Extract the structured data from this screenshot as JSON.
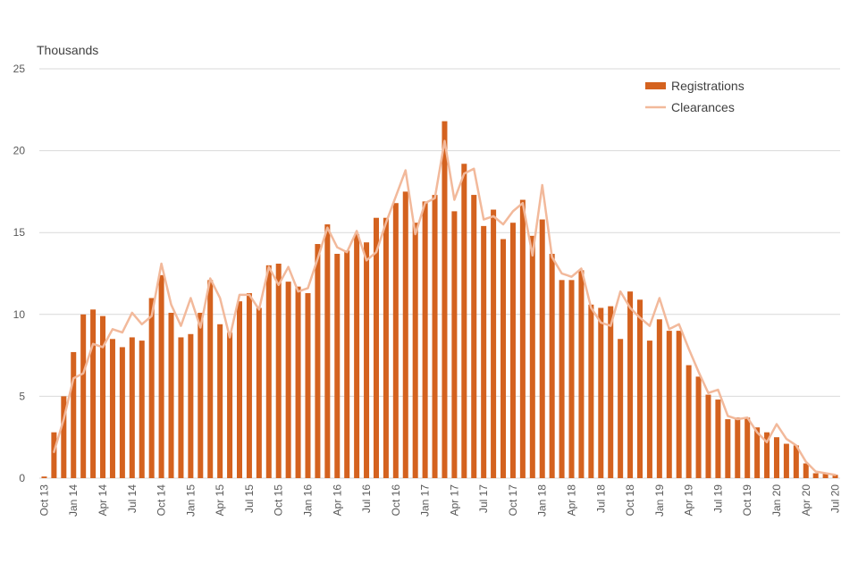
{
  "chart_data": {
    "type": "bar",
    "title": "",
    "unit_label": "Thousands",
    "xlabel": "",
    "ylabel": "",
    "ylim": [
      0,
      25
    ],
    "yticks": [
      0,
      5,
      10,
      15,
      20,
      25
    ],
    "grid": true,
    "legend_position": "top-right",
    "colors": {
      "bars": "#D4621F",
      "line": "#F2B99B",
      "grid": "#D9D9D9",
      "axis_text": "#595959"
    },
    "categories": [
      "Oct 13",
      "Nov 13",
      "Dec 13",
      "Jan 14",
      "Feb 14",
      "Mar 14",
      "Apr 14",
      "May 14",
      "Jun 14",
      "Jul 14",
      "Aug 14",
      "Sep 14",
      "Oct 14",
      "Nov 14",
      "Dec 14",
      "Jan 15",
      "Feb 15",
      "Mar 15",
      "Apr 15",
      "May 15",
      "Jun 15",
      "Jul 15",
      "Aug 15",
      "Sep 15",
      "Oct 15",
      "Nov 15",
      "Dec 15",
      "Jan 16",
      "Feb 16",
      "Mar 16",
      "Apr 16",
      "May 16",
      "Jun 16",
      "Jul 16",
      "Aug 16",
      "Sep 16",
      "Oct 16",
      "Nov 16",
      "Dec 16",
      "Jan 17",
      "Feb 17",
      "Mar 17",
      "Apr 17",
      "May 17",
      "Jun 17",
      "Jul 17",
      "Aug 17",
      "Sep 17",
      "Oct 17",
      "Nov 17",
      "Dec 17",
      "Jan 18",
      "Feb 18",
      "Mar 18",
      "Apr 18",
      "May 18",
      "Jun 18",
      "Jul 18",
      "Aug 18",
      "Sep 18",
      "Oct 18",
      "Nov 18",
      "Dec 18",
      "Jan 19",
      "Feb 19",
      "Mar 19",
      "Apr 19",
      "May 19",
      "Jun 19",
      "Jul 19",
      "Aug 19",
      "Sep 19",
      "Oct 19",
      "Nov 19",
      "Dec 19",
      "Jan 20",
      "Feb 20",
      "Mar 20",
      "Apr 20",
      "May 20",
      "Jun 20",
      "Jul 20"
    ],
    "tick_labels": [
      "Oct 13",
      "Jan 14",
      "Apr 14",
      "Jul 14",
      "Oct 14",
      "Jan 15",
      "Apr 15",
      "Jul 15",
      "Oct 15",
      "Jan 16",
      "Apr 16",
      "Jul 16",
      "Oct 16",
      "Jan 17",
      "Apr 17",
      "Jul 17",
      "Oct 17",
      "Jan 18",
      "Apr 18",
      "Jul 18",
      "Oct 18",
      "Jan 19",
      "Apr 19",
      "Jul 19",
      "Oct 19",
      "Jan 20",
      "Apr 20",
      "Jul 20"
    ],
    "series": [
      {
        "name": "Registrations",
        "kind": "bar",
        "values": [
          0.1,
          2.8,
          5.0,
          7.7,
          10.0,
          10.3,
          9.9,
          8.5,
          8.0,
          8.6,
          8.4,
          11.0,
          12.4,
          10.1,
          8.6,
          8.8,
          10.1,
          12.1,
          9.4,
          8.9,
          10.8,
          11.3,
          10.4,
          13.0,
          13.1,
          12.0,
          11.7,
          11.3,
          14.3,
          15.5,
          13.7,
          13.9,
          14.9,
          14.4,
          15.9,
          15.9,
          16.8,
          17.5,
          15.6,
          16.9,
          17.3,
          21.8,
          16.3,
          19.2,
          17.3,
          15.4,
          16.4,
          14.6,
          15.6,
          17.0,
          14.8,
          15.8,
          13.7,
          12.1,
          12.1,
          12.7,
          10.6,
          10.4,
          10.5,
          8.5,
          11.4,
          10.9,
          8.4,
          9.7,
          9.0,
          9.0,
          6.9,
          6.2,
          5.1,
          4.8,
          3.6,
          3.7,
          3.7,
          3.1,
          2.8,
          2.5,
          2.1,
          2.0,
          0.9,
          0.3,
          0.3,
          0.2
        ]
      },
      {
        "name": "Clearances",
        "kind": "line",
        "values": [
          null,
          1.6,
          3.6,
          6.1,
          6.4,
          8.2,
          8.0,
          9.1,
          8.9,
          10.1,
          9.4,
          9.9,
          13.1,
          10.6,
          9.3,
          11.0,
          9.2,
          12.2,
          11.0,
          8.6,
          11.2,
          11.2,
          10.3,
          12.9,
          11.8,
          12.9,
          11.4,
          11.6,
          13.4,
          15.3,
          14.1,
          13.8,
          15.1,
          13.3,
          13.8,
          15.6,
          17.2,
          18.8,
          14.9,
          16.8,
          17.1,
          20.6,
          17.0,
          18.6,
          18.9,
          15.8,
          16.0,
          15.5,
          16.3,
          16.8,
          13.6,
          17.9,
          13.5,
          12.5,
          12.3,
          12.8,
          10.4,
          9.5,
          9.3,
          11.4,
          10.4,
          9.8,
          9.3,
          11.0,
          9.1,
          9.4,
          7.9,
          6.5,
          5.2,
          5.4,
          3.8,
          3.6,
          3.7,
          2.8,
          2.2,
          3.3,
          2.4,
          2.0,
          1.0,
          0.4,
          0.3,
          0.2
        ]
      }
    ]
  }
}
